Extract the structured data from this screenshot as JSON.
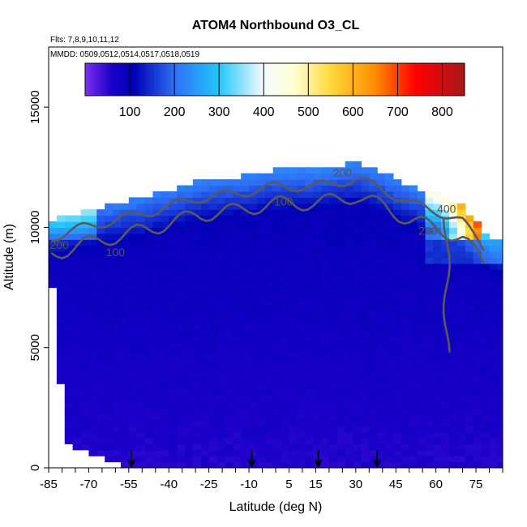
{
  "chart_data": {
    "type": "heatmap",
    "title": "ATOM4 Northbound O3_CL",
    "flights_text": "Flts: 7,8,9,10,11,12",
    "dates_text": "MMDD: 0509,0512,0514,0517,0518,0519",
    "xlabel": "Latitude (deg N)",
    "ylabel": "Altitude (m)",
    "xlim": [
      -85,
      85
    ],
    "ylim": [
      0,
      17500
    ],
    "xticks": [
      -85,
      -70,
      -55,
      -40,
      -25,
      -10,
      5,
      15,
      30,
      45,
      60,
      75
    ],
    "yticks": [
      0,
      5000,
      10000,
      15000
    ],
    "colorbar": {
      "range": [
        0,
        850
      ],
      "ticks": [
        100,
        200,
        300,
        400,
        500,
        600,
        700,
        800
      ],
      "stops": [
        {
          "v": 0,
          "c": "#7f2ff0"
        },
        {
          "v": 60,
          "c": "#1a00c8"
        },
        {
          "v": 110,
          "c": "#0000b4"
        },
        {
          "v": 200,
          "c": "#2f6ff5"
        },
        {
          "v": 300,
          "c": "#22c8ff"
        },
        {
          "v": 400,
          "c": "#f4fbff"
        },
        {
          "v": 470,
          "c": "#ffffd0"
        },
        {
          "v": 550,
          "c": "#ffd93a"
        },
        {
          "v": 650,
          "c": "#ff8c00"
        },
        {
          "v": 740,
          "c": "#ff0000"
        },
        {
          "v": 850,
          "c": "#a8161b"
        }
      ]
    },
    "contour_labels": [
      {
        "text": "200",
        "x": 25,
        "y": 12100
      },
      {
        "text": "100",
        "x": 3,
        "y": 10900
      },
      {
        "text": "400",
        "x": 64,
        "y": 10600
      },
      {
        "text": "200",
        "x": 57,
        "y": 9700
      },
      {
        "text": "200",
        "x": -81,
        "y": 9100
      },
      {
        "text": "100",
        "x": -60,
        "y": 8800
      }
    ],
    "arrow_latitudes": [
      -54,
      -9,
      16,
      38
    ],
    "domain_top_profile": [
      {
        "x": -84,
        "top": 10300
      },
      {
        "x": -80,
        "top": 10400
      },
      {
        "x": -72,
        "top": 10700
      },
      {
        "x": -60,
        "top": 11000
      },
      {
        "x": -45,
        "top": 11400
      },
      {
        "x": -30,
        "top": 11900
      },
      {
        "x": -15,
        "top": 12100
      },
      {
        "x": 0,
        "top": 12400
      },
      {
        "x": 15,
        "top": 12400
      },
      {
        "x": 30,
        "top": 12700
      },
      {
        "x": 40,
        "top": 12300
      },
      {
        "x": 50,
        "top": 11700
      },
      {
        "x": 60,
        "top": 11400
      },
      {
        "x": 70,
        "top": 10900
      },
      {
        "x": 76,
        "top": 10200
      },
      {
        "x": 80,
        "top": 9600
      }
    ],
    "domain_bottom_profile": [
      {
        "x": -84,
        "bottom": 8300
      },
      {
        "x": -82,
        "bottom": 5000
      },
      {
        "x": -80,
        "bottom": 2900
      },
      {
        "x": -78,
        "bottom": 900
      },
      {
        "x": -68,
        "bottom": 500
      },
      {
        "x": -56,
        "bottom": 0
      },
      {
        "x": 80,
        "bottom": 0
      }
    ]
  }
}
